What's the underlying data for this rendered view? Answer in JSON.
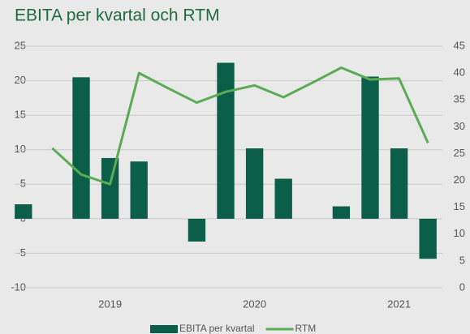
{
  "chart_data": {
    "type": "bar_line",
    "title": "EBITA per kvartal och RTM",
    "categories": [
      null,
      null,
      null,
      "2019",
      null,
      null,
      null,
      null,
      "2020",
      null,
      null,
      null,
      null,
      "2021",
      null
    ],
    "series": [
      {
        "name": "EBITA per kvartal",
        "color": "#0b5e47",
        "type": "bar",
        "axis": "y",
        "values": [
          2.1,
          null,
          20.5,
          8.8,
          8.3,
          null,
          -3.3,
          22.6,
          10.2,
          5.8,
          null,
          1.8,
          20.6,
          10.2,
          -5.8
        ]
      },
      {
        "name": "RTM",
        "color": "#5bab55",
        "type": "line",
        "axis": "y2",
        "values": [
          null,
          26,
          21.1,
          19.3,
          40,
          37.2,
          34.5,
          36.5,
          37.7,
          35.5,
          38.2,
          41,
          38.8,
          39,
          27
        ]
      }
    ],
    "ylim": [
      -10,
      25
    ],
    "yticks": [
      -10,
      -5,
      0,
      5,
      10,
      15,
      20,
      25
    ],
    "y2lim": [
      0,
      45
    ],
    "y2ticks": [
      0,
      5,
      10,
      15,
      20,
      25,
      30,
      35,
      40,
      45
    ],
    "grid": true,
    "legend": "bottom"
  }
}
